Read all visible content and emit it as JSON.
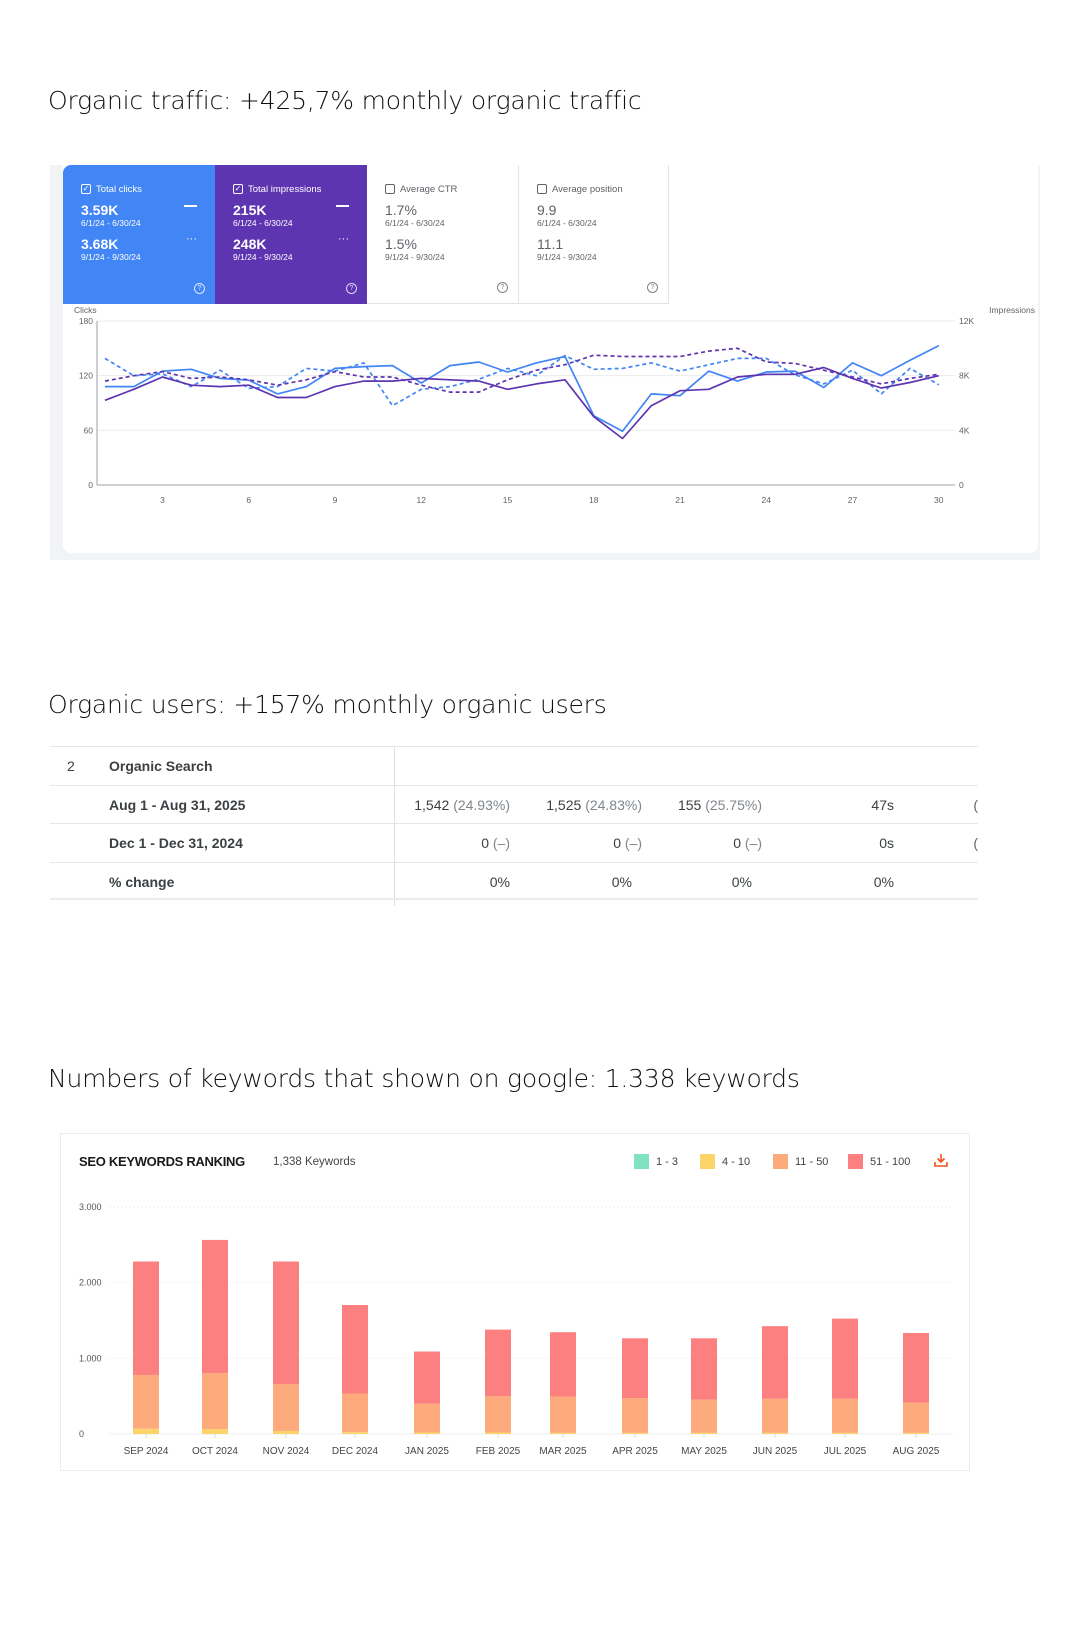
{
  "sections": {
    "traffic_title": "Organic traffic: +425,7% monthly organic traffic",
    "users_title": "Organic users: +157% monthly organic users",
    "keywords_title": "Numbers of keywords that shown on google: 1.338 keywords"
  },
  "gsc": {
    "metrics": [
      {
        "label": "Total clicks",
        "checked": true,
        "value1": "3.59K",
        "range1": "6/1/24 - 6/30/24",
        "value2": "3.68K",
        "range2": "9/1/24 - 9/30/24",
        "color": "#4285f4"
      },
      {
        "label": "Total impressions",
        "checked": true,
        "value1": "215K",
        "range1": "6/1/24 - 6/30/24",
        "value2": "248K",
        "range2": "9/1/24 - 9/30/24",
        "color": "#5e35b1"
      },
      {
        "label": "Average CTR",
        "checked": false,
        "value1": "1.7%",
        "range1": "6/1/24 - 6/30/24",
        "value2": "1.5%",
        "range2": "9/1/24 - 9/30/24"
      },
      {
        "label": "Average position",
        "checked": false,
        "value1": "9.9",
        "range1": "6/1/24 - 6/30/24",
        "value2": "11.1",
        "range2": "9/1/24 - 9/30/24"
      }
    ],
    "help_glyph": "?",
    "check_glyph": "✓"
  },
  "ga_table": {
    "group": {
      "index": "2",
      "name": "Organic Search"
    },
    "rows": [
      {
        "label": "Aug 1 - Aug 31, 2025",
        "c1": "1,542",
        "c1p": "(24.93%)",
        "c2": "1,525",
        "c2p": "(24.83%)",
        "c3": "155",
        "c3p": "(25.75%)",
        "c4": "47s",
        "c5": "("
      },
      {
        "label": "Dec 1 - Dec 31, 2024",
        "c1": "0",
        "c1p": "(–)",
        "c2": "0",
        "c2p": "(–)",
        "c3": "0",
        "c3p": "(–)",
        "c4": "0s",
        "c5": "("
      },
      {
        "label": "% change",
        "c1": "0%",
        "c2": "0%",
        "c3": "0%",
        "c4": "0%"
      }
    ]
  },
  "seo": {
    "title": "SEO KEYWORDS RANKING",
    "count": "1,338 Keywords",
    "legend": [
      {
        "label": "1 - 3",
        "color": "#7fe3bf"
      },
      {
        "label": "4 - 10",
        "color": "#fdd46a"
      },
      {
        "label": "11 - 50",
        "color": "#fdab7d"
      },
      {
        "label": "51 - 100",
        "color": "#fd8080"
      }
    ],
    "download_icon_color": "#f4511e"
  },
  "chart_data": [
    {
      "type": "line",
      "title": "Google Search Console performance",
      "x": [
        1,
        2,
        3,
        4,
        5,
        6,
        7,
        8,
        9,
        10,
        11,
        12,
        13,
        14,
        15,
        16,
        17,
        18,
        19,
        20,
        21,
        22,
        23,
        24,
        25,
        26,
        27,
        28,
        29,
        30
      ],
      "xticks": [
        "3",
        "6",
        "9",
        "12",
        "15",
        "18",
        "21",
        "24",
        "27",
        "30"
      ],
      "ylabel": "Clicks",
      "y2label": "Impressions",
      "yticks": [
        "0",
        "60",
        "120",
        "180"
      ],
      "y2ticks": [
        "0",
        "4K",
        "8K",
        "12K"
      ],
      "ylim": [
        0,
        180
      ],
      "y2lim": [
        0,
        12000
      ],
      "grid": true,
      "series": [
        {
          "name": "Total clicks (6/1/24 - 6/30/24)",
          "axis": "left",
          "style": "solid",
          "color": "#4285f4",
          "values": [
            108,
            108,
            125,
            127,
            117,
            115,
            100,
            108,
            128,
            130,
            131,
            112,
            131,
            135,
            124,
            134,
            141,
            76,
            59,
            100,
            98,
            125,
            114,
            124,
            125,
            107,
            134,
            120,
            137,
            153
          ]
        },
        {
          "name": "Total clicks (9/1/24 - 9/30/24)",
          "axis": "left",
          "style": "dashed",
          "color": "#4285f4",
          "values": [
            139,
            120,
            122,
            108,
            126,
            106,
            108,
            128,
            125,
            134,
            87,
            105,
            108,
            116,
            128,
            120,
            142,
            127,
            128,
            134,
            125,
            132,
            139,
            139,
            121,
            111,
            126,
            100,
            128,
            110
          ]
        },
        {
          "name": "Total impressions (6/1/24 - 6/30/24)",
          "axis": "right",
          "style": "solid",
          "color": "#5e35b1",
          "values": [
            6200,
            7000,
            7900,
            7300,
            7200,
            7300,
            6400,
            6400,
            7200,
            7600,
            7600,
            7800,
            7700,
            7600,
            7000,
            7400,
            7700,
            5000,
            3400,
            5800,
            6900,
            7000,
            7900,
            8100,
            8100,
            8600,
            7800,
            7100,
            7500,
            8000
          ]
        },
        {
          "name": "Total impressions (9/1/24 - 9/30/24)",
          "axis": "right",
          "style": "dashed",
          "color": "#5e35b1",
          "values": [
            7600,
            8000,
            8300,
            7800,
            7900,
            7700,
            7300,
            7700,
            8300,
            7900,
            7900,
            7300,
            6800,
            6800,
            7700,
            8400,
            8800,
            9500,
            9400,
            9400,
            9400,
            9800,
            10000,
            9000,
            8900,
            8400,
            7900,
            7400,
            7800,
            8100
          ]
        }
      ]
    },
    {
      "type": "bar",
      "stacked": true,
      "title": "SEO KEYWORDS RANKING",
      "subtitle": "1,338 Keywords",
      "categories": [
        "SEP 2024",
        "OCT 2024",
        "NOV 2024",
        "DEC 2024",
        "JAN 2025",
        "FEB 2025",
        "MAR 2025",
        "APR 2025",
        "MAY 2025",
        "JUN 2025",
        "JUL 2025",
        "AUG 2025"
      ],
      "yticks": [
        "0",
        "1.000",
        "2.000",
        "3.000"
      ],
      "ylim": [
        0,
        3000
      ],
      "grid": true,
      "legend_position": "top-right",
      "series": [
        {
          "name": "1 - 3",
          "color": "#7fe3bf",
          "values": [
            0,
            0,
            0,
            0,
            0,
            0,
            0,
            0,
            0,
            0,
            0,
            0
          ]
        },
        {
          "name": "4 - 10",
          "color": "#fdd46a",
          "values": [
            70,
            65,
            40,
            25,
            20,
            20,
            15,
            15,
            15,
            15,
            15,
            15
          ]
        },
        {
          "name": "11 - 50",
          "color": "#fdab7d",
          "values": [
            710,
            740,
            620,
            510,
            380,
            480,
            480,
            460,
            440,
            450,
            450,
            400
          ]
        },
        {
          "name": "51 - 100",
          "color": "#fd8080",
          "values": [
            1500,
            1760,
            1620,
            1170,
            690,
            880,
            850,
            790,
            810,
            960,
            1060,
            920
          ]
        }
      ],
      "totals": [
        2280,
        2565,
        2280,
        1705,
        1090,
        1380,
        1345,
        1265,
        1265,
        1425,
        1525,
        1335
      ]
    }
  ]
}
